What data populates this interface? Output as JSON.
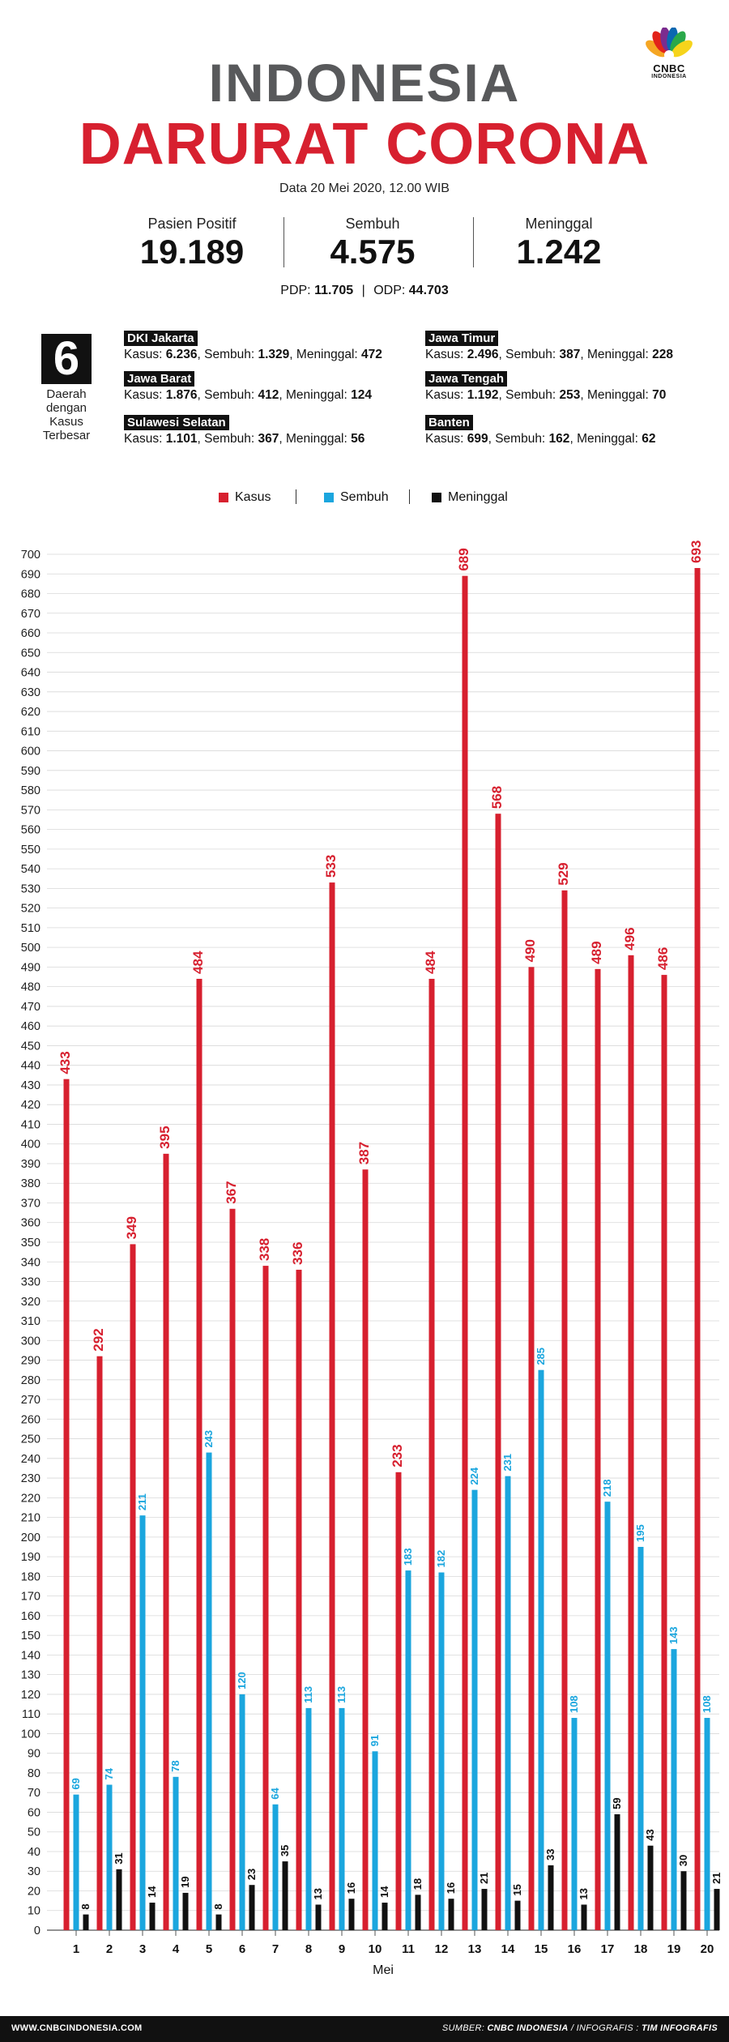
{
  "header": {
    "title_line1": "INDONESIA",
    "title_line2": "DARURAT CORONA",
    "date": "Data 20 Mei 2020, 12.00 WIB"
  },
  "logo": {
    "text": "CNBC",
    "sub": "INDONESIA",
    "icon": "cnbc-peacock-icon"
  },
  "stats": [
    {
      "label": "Pasien Positif",
      "value": "19.189"
    },
    {
      "label": "Sembuh",
      "value": "4.575"
    },
    {
      "label": "Meninggal",
      "value": "1.242"
    }
  ],
  "sub_stats": {
    "pdp_label": "PDP:",
    "pdp_value": "11.705",
    "odp_label": "ODP:",
    "odp_value": "44.703",
    "separator": "|"
  },
  "top_regions": {
    "count": "6",
    "caption_lines": [
      "Daerah",
      "dengan",
      "Kasus",
      "Terbesar"
    ],
    "labels": {
      "kasus": "Kasus:",
      "sembuh": "Sembuh:",
      "meninggal": "Meninggal:"
    },
    "items": [
      {
        "name": "DKI Jakarta",
        "kasus": "6.236",
        "sembuh": "1.329",
        "meninggal": "472"
      },
      {
        "name": "Jawa Barat",
        "kasus": "1.876",
        "sembuh": "412",
        "meninggal": "124"
      },
      {
        "name": "Sulawesi Selatan",
        "kasus": "1.101",
        "sembuh": "367",
        "meninggal": "56"
      },
      {
        "name": "Jawa Timur",
        "kasus": "2.496",
        "sembuh": "387",
        "meninggal": "228"
      },
      {
        "name": "Jawa Tengah",
        "kasus": "1.192",
        "sembuh": "253",
        "meninggal": "70"
      },
      {
        "name": "Banten",
        "kasus": "699",
        "sembuh": "162",
        "meninggal": "62"
      }
    ]
  },
  "colors": {
    "kasus": "#d7202f",
    "sembuh": "#1ba6de",
    "meninggal": "#111111",
    "title_gray": "#58595b"
  },
  "chart_data": {
    "type": "bar",
    "xlabel": "Mei",
    "ylabel": "",
    "ylim": [
      0,
      700
    ],
    "ytick_step": 10,
    "grid": true,
    "legend_position": "top-center",
    "categories": [
      "1",
      "2",
      "3",
      "4",
      "5",
      "6",
      "7",
      "8",
      "9",
      "10",
      "11",
      "12",
      "13",
      "14",
      "15",
      "16",
      "17",
      "18",
      "19",
      "20"
    ],
    "series": [
      {
        "name": "Kasus",
        "color": "#d7202f",
        "values": [
          433,
          292,
          349,
          395,
          484,
          367,
          338,
          336,
          533,
          387,
          233,
          484,
          689,
          568,
          490,
          529,
          489,
          496,
          486,
          693
        ]
      },
      {
        "name": "Sembuh",
        "color": "#1ba6de",
        "values": [
          69,
          74,
          211,
          78,
          243,
          120,
          64,
          113,
          113,
          91,
          183,
          182,
          224,
          231,
          285,
          108,
          218,
          195,
          143,
          108
        ]
      },
      {
        "name": "Meninggal",
        "color": "#111111",
        "values": [
          8,
          31,
          14,
          19,
          8,
          23,
          35,
          13,
          16,
          14,
          18,
          16,
          21,
          15,
          33,
          13,
          59,
          43,
          30,
          21
        ]
      }
    ]
  },
  "footer": {
    "site": "WWW.CNBCINDONESIA.COM",
    "source_label": "SUMBER:",
    "source": "CNBC INDONESIA",
    "infografis_label": "/ INFOGRAFIS :",
    "team": "TIM INFOGRAFIS"
  }
}
